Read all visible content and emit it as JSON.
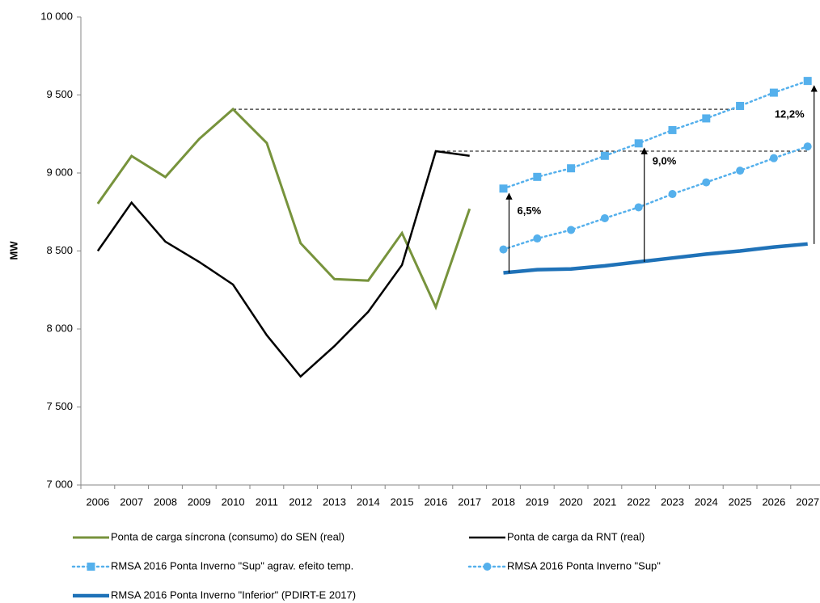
{
  "chart_data": {
    "type": "line",
    "y_label": "MW",
    "categories": [
      "2006",
      "2007",
      "2008",
      "2009",
      "2010",
      "2011",
      "2012",
      "2013",
      "2014",
      "2015",
      "2016",
      "2017",
      "2018",
      "2019",
      "2020",
      "2021",
      "2022",
      "2023",
      "2024",
      "2025",
      "2026",
      "2027"
    ],
    "ylim": [
      7000,
      10000
    ],
    "yticks": [
      {
        "value": 7000,
        "label": "7 000"
      },
      {
        "value": 7500,
        "label": "7 500"
      },
      {
        "value": 8000,
        "label": "8 000"
      },
      {
        "value": 8500,
        "label": "8 500"
      },
      {
        "value": 9000,
        "label": "9 000"
      },
      {
        "value": 9500,
        "label": "9 500"
      },
      {
        "value": 10000,
        "label": "10 000"
      }
    ],
    "series": [
      {
        "name": "Ponta de carga síncrona (consumo) do SEN (real)",
        "color": "#77933c",
        "marker": "none",
        "style": "solid",
        "width": 3,
        "values": [
          8803,
          9109,
          8974,
          9218,
          9409,
          9192,
          8550,
          8320,
          8310,
          8615,
          8140,
          8770,
          null,
          null,
          null,
          null,
          null,
          null,
          null,
          null,
          null,
          null
        ]
      },
      {
        "name": "Ponta de carga da RNT (real)",
        "color": "#000000",
        "marker": "none",
        "style": "solid",
        "width": 2.5,
        "values": [
          8500,
          8810,
          8560,
          8430,
          8285,
          7960,
          7695,
          7890,
          8110,
          8410,
          9140,
          9110,
          null,
          null,
          null,
          null,
          null,
          null,
          null,
          null,
          null,
          null
        ]
      },
      {
        "name": "RMSA 2016 Ponta Inverno \"Sup\" agrav. efeito temp.",
        "color": "#55b0ec",
        "marker": "square",
        "style": "dotted",
        "width": 2.5,
        "values": [
          null,
          null,
          null,
          null,
          null,
          null,
          null,
          null,
          null,
          null,
          null,
          null,
          8900,
          8975,
          9030,
          9110,
          9190,
          9275,
          9350,
          9430,
          9515,
          9590
        ]
      },
      {
        "name": "RMSA 2016 Ponta Inverno \"Sup\"",
        "color": "#55b0ec",
        "marker": "circle",
        "style": "dotted",
        "width": 2.5,
        "values": [
          null,
          null,
          null,
          null,
          null,
          null,
          null,
          null,
          null,
          null,
          null,
          null,
          8510,
          8580,
          8635,
          8710,
          8780,
          8865,
          8940,
          9015,
          9095,
          9170
        ]
      },
      {
        "name": "RMSA 2016 Ponta Inverno \"Inferior\" (PDIRT-E 2017)",
        "color": "#1f72b8",
        "marker": "none",
        "style": "solid",
        "width": 4.5,
        "values": [
          null,
          null,
          null,
          null,
          null,
          null,
          null,
          null,
          null,
          null,
          null,
          null,
          8360,
          8380,
          8385,
          8405,
          8430,
          8455,
          8480,
          8500,
          8525,
          8545
        ]
      }
    ],
    "annotations": [
      "6,5%",
      "9,0%",
      "12,2%"
    ]
  }
}
